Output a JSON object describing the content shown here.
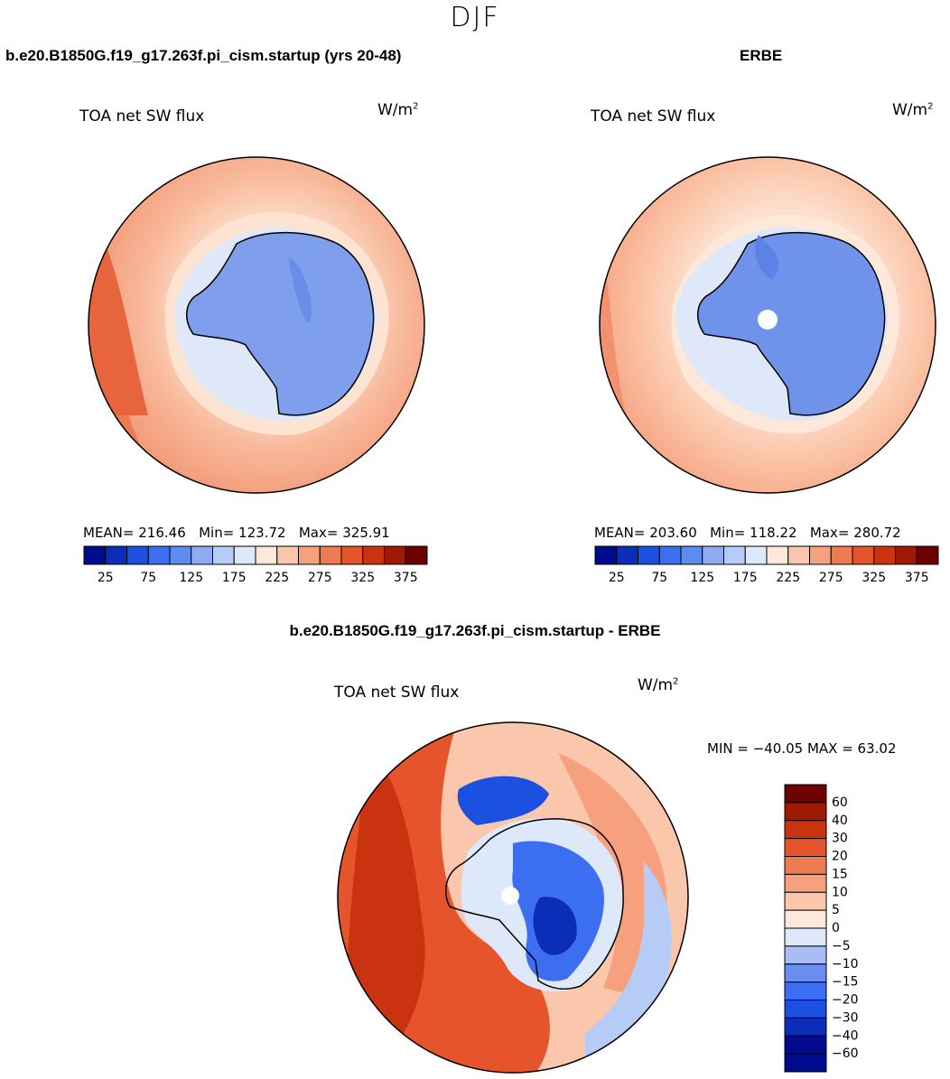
{
  "season": "DJF",
  "panels": [
    {
      "id": "model",
      "case_title": "b.e20.B1850G.f19_g17.263f.pi_cism.startup (yrs 20-48)",
      "variable": "TOA net SW flux",
      "units": "W/m",
      "units_sup": "2",
      "stats": {
        "mean_label": "MEAN=",
        "mean": "216.46",
        "min_label": "Min=",
        "min": "123.72",
        "max_label": "Max=",
        "max": "325.91"
      }
    },
    {
      "id": "obs",
      "case_title": "ERBE",
      "variable": "TOA net SW flux",
      "units": "W/m",
      "units_sup": "2",
      "stats": {
        "mean_label": "MEAN=",
        "mean": "203.60",
        "min_label": "Min=",
        "min": "118.22",
        "max_label": "Max=",
        "max": "280.72"
      }
    },
    {
      "id": "diff",
      "case_title": "b.e20.B1850G.f19_g17.263f.pi_cism.startup - ERBE",
      "variable": "TOA net SW flux",
      "units": "W/m",
      "units_sup": "2",
      "stats_text": "MIN = −40.05 MAX =   63.02"
    }
  ],
  "colors": {
    "abs_scale": [
      "#000a8c",
      "#0b2db8",
      "#1c50e0",
      "#3b6ef0",
      "#5c8cf0",
      "#8eaaf2",
      "#b6cbf5",
      "#dde9f8",
      "#fde8d9",
      "#fbc7ac",
      "#f6a07e",
      "#ee7a52",
      "#e5542b",
      "#c9330f",
      "#9e1a05",
      "#6d0000"
    ],
    "diff_scale": [
      "#000a8c",
      "#0b2db8",
      "#1c50e0",
      "#3b6ef0",
      "#6a8df0",
      "#a7bdf3",
      "#dde9f8",
      "#fde8d9",
      "#fbc7ac",
      "#f6a07e",
      "#ee7a52",
      "#e5542b",
      "#c9330f",
      "#9e1a05",
      "#6d0000"
    ],
    "ocean_model": "#f4a384",
    "ocean_model_far": "#ee7c55",
    "ocean_obs": "#f7b89a",
    "ice_zone": "#dfe8f8",
    "antarctica_model": "#7f9fec",
    "antarctica_obs": "#6f92ea",
    "diff_ocean": "#e5542b",
    "diff_pale": "#fdd9c6",
    "diff_blue": "#3b6ef0"
  },
  "chart_data": [
    {
      "type": "heatmap",
      "projection": "south polar stereographic",
      "title": "b.e20.B1850G.f19_g17.263f.pi_cism.startup (yrs 20-48)",
      "variable": "TOA net SW flux",
      "units": "W/m^2",
      "mean": 216.46,
      "min": 123.72,
      "max": 325.91,
      "colorbar": {
        "orientation": "horizontal",
        "ticks": [
          25,
          75,
          125,
          175,
          225,
          275,
          325,
          375
        ],
        "levels": [
          25,
          50,
          75,
          100,
          125,
          150,
          175,
          200,
          225,
          250,
          275,
          300,
          325,
          350,
          375
        ]
      }
    },
    {
      "type": "heatmap",
      "projection": "south polar stereographic",
      "title": "ERBE",
      "variable": "TOA net SW flux",
      "units": "W/m^2",
      "mean": 203.6,
      "min": 118.22,
      "max": 280.72,
      "colorbar": {
        "orientation": "horizontal",
        "ticks": [
          25,
          75,
          125,
          175,
          225,
          275,
          325,
          375
        ],
        "levels": [
          25,
          50,
          75,
          100,
          125,
          150,
          175,
          200,
          225,
          250,
          275,
          300,
          325,
          350,
          375
        ]
      }
    },
    {
      "type": "heatmap",
      "projection": "south polar stereographic",
      "title": "b.e20.B1850G.f19_g17.263f.pi_cism.startup - ERBE",
      "variable": "TOA net SW flux",
      "units": "W/m^2",
      "min": -40.05,
      "max": 63.02,
      "colorbar": {
        "orientation": "vertical",
        "tick_labels": [
          "60",
          "40",
          "30",
          "20",
          "15",
          "10",
          "5",
          "0",
          "−5",
          "−10",
          "−15",
          "−20",
          "−30",
          "−40",
          "−60"
        ]
      }
    }
  ]
}
